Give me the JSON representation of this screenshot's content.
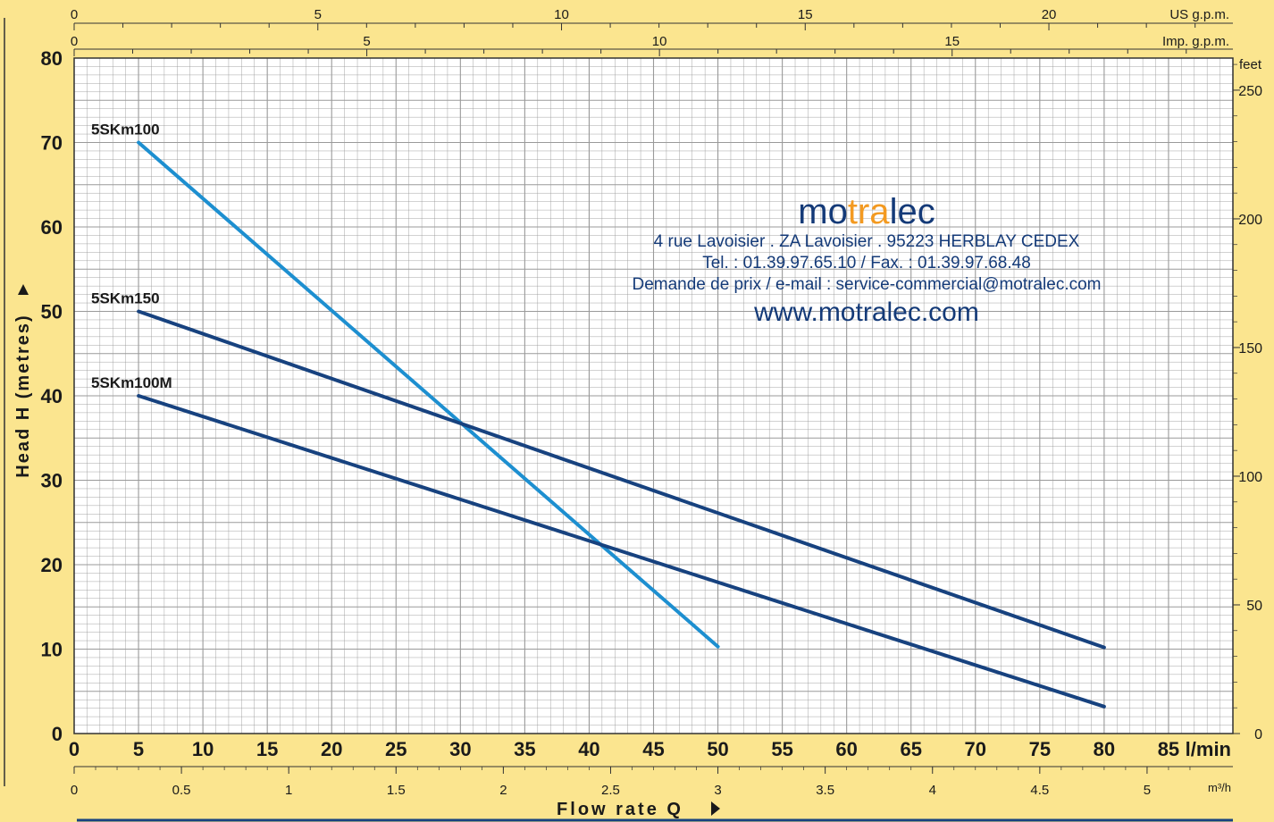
{
  "chart_data": {
    "type": "line",
    "title": "",
    "xlabel": "Flow rate Q",
    "ylabel": "Head H (metres)",
    "x_unit": "l/min",
    "x_ticks": [
      "0",
      "5",
      "10",
      "15",
      "20",
      "25",
      "30",
      "35",
      "40",
      "45",
      "50",
      "55",
      "60",
      "65",
      "70",
      "75",
      "80",
      "85"
    ],
    "xlim": [
      0,
      90
    ],
    "y_ticks": [
      "0",
      "10",
      "20",
      "30",
      "40",
      "50",
      "60",
      "70",
      "80"
    ],
    "ylim": [
      0,
      80
    ],
    "grid": true,
    "series": [
      {
        "name": "5SKm100",
        "color": "#1d8fd0",
        "x": [
          5,
          50
        ],
        "y": [
          70,
          10.3
        ]
      },
      {
        "name": "5SKm150",
        "color": "#17427f",
        "x": [
          5,
          80
        ],
        "y": [
          50,
          10.2
        ]
      },
      {
        "name": "5SKm100M",
        "color": "#17427f",
        "x": [
          5,
          80
        ],
        "y": [
          40,
          3.2
        ]
      }
    ],
    "secondary_axes": {
      "us_gpm": {
        "unit": "US g.p.m.",
        "ticks": [
          "0",
          "5",
          "10",
          "15",
          "20"
        ]
      },
      "imp_gpm": {
        "unit": "Imp. g.p.m.",
        "ticks": [
          "0",
          "5",
          "10",
          "15"
        ]
      },
      "m3h": {
        "unit": "m³/h",
        "ticks": [
          "0",
          "0.5",
          "1",
          "1.5",
          "2",
          "2.5",
          "3",
          "3.5",
          "4",
          "4.5",
          "5"
        ]
      },
      "feet": {
        "unit": "feet",
        "ticks": [
          "0",
          "50",
          "100",
          "150",
          "200",
          "250"
        ]
      }
    }
  },
  "watermark": {
    "brand_pre": "mo",
    "brand_mid": "tra",
    "brand_post": "lec",
    "address": "4 rue Lavoisier . ZA Lavoisier . 95223 HERBLAY CEDEX",
    "phone": "Tel. : 01.39.97.65.10 / Fax. : 01.39.97.68.48",
    "email": "Demande de prix / e-mail : service-commercial@motralec.com",
    "website": "www.motralec.com"
  },
  "colors": {
    "background": "#fbe58f",
    "plot_bg": "#ffffff",
    "grid": "#9a9a9a",
    "navy": "#17427f",
    "light_blue": "#1d8fd0",
    "brand_orange": "#f39a21"
  }
}
